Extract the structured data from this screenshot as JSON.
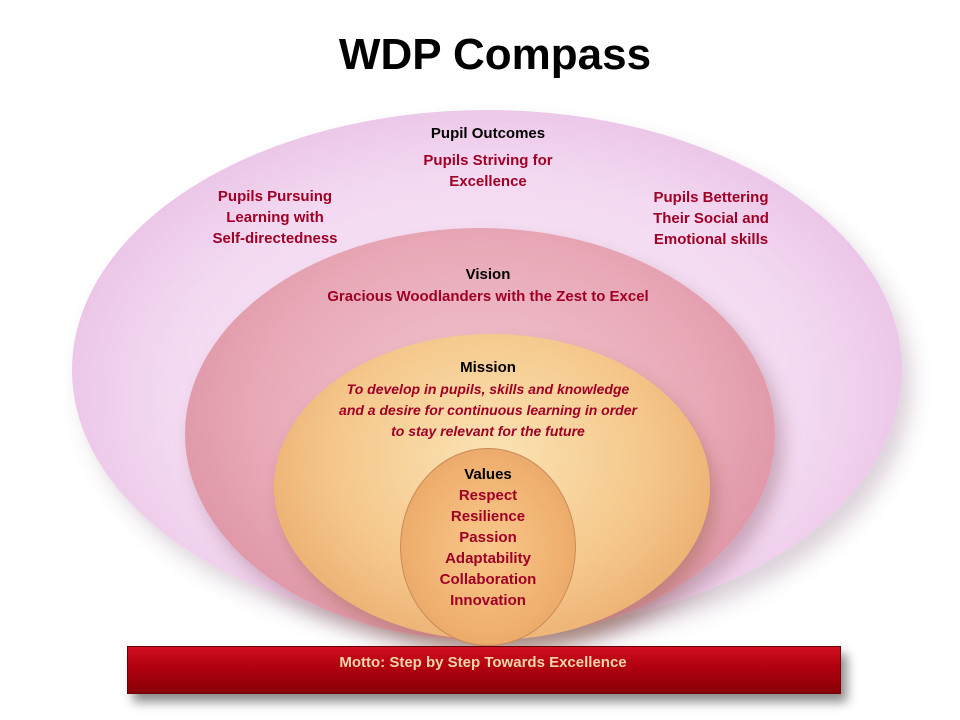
{
  "title": "WDP Compass",
  "pupil_outcomes": {
    "heading": "Pupil Outcomes",
    "items": [
      [
        "Pupils Striving for",
        "Excellence"
      ],
      [
        "Pupils Pursuing",
        "Learning with",
        "Self-directedness"
      ],
      [
        "Pupils Bettering",
        "Their Social and",
        "Emotional skills"
      ]
    ]
  },
  "vision": {
    "heading": "Vision",
    "text": "Gracious Woodlanders with the Zest to Excel"
  },
  "mission": {
    "heading": "Mission",
    "lines": [
      "To develop in pupils, skills and knowledge",
      "and a desire for continuous learning in order",
      "to stay relevant for the future"
    ]
  },
  "values": {
    "heading": "Values",
    "items": [
      "Respect",
      "Resilience",
      "Passion",
      "Adaptability",
      "Collaboration",
      "Innovation"
    ]
  },
  "motto": "Motto: Step by Step Towards Excellence",
  "colors": {
    "text_red": "#a00026",
    "outer_ellipse": "#f3d9f1",
    "vision_ellipse": "#e8a7b6",
    "mission_ellipse": "#f5c88c",
    "values_ellipse": "#efb070",
    "motto_bar": "#b00010",
    "motto_text": "#f6d6a8"
  }
}
